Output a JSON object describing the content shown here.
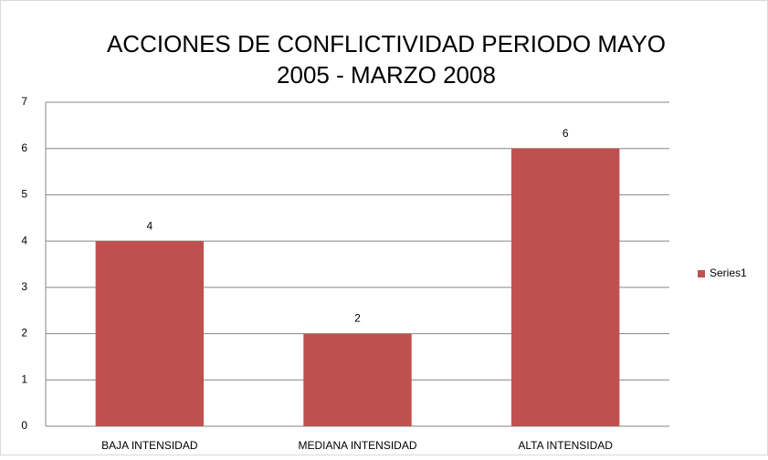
{
  "chart_data": {
    "type": "bar",
    "title": [
      "ACCIONES DE CONFLICTIVIDAD PERIODO MAYO",
      "2005 - MARZO 2008"
    ],
    "categories": [
      "BAJA INTENSIDAD",
      "MEDIANA INTENSIDAD",
      "ALTA INTENSIDAD"
    ],
    "series": [
      {
        "name": "Series1",
        "color": "#c0504d",
        "values": [
          4,
          2,
          6
        ]
      }
    ],
    "ylim": [
      0,
      7
    ],
    "yticks": [
      0,
      1,
      2,
      3,
      4,
      5,
      6,
      7
    ],
    "grid": true,
    "legend": "right"
  }
}
